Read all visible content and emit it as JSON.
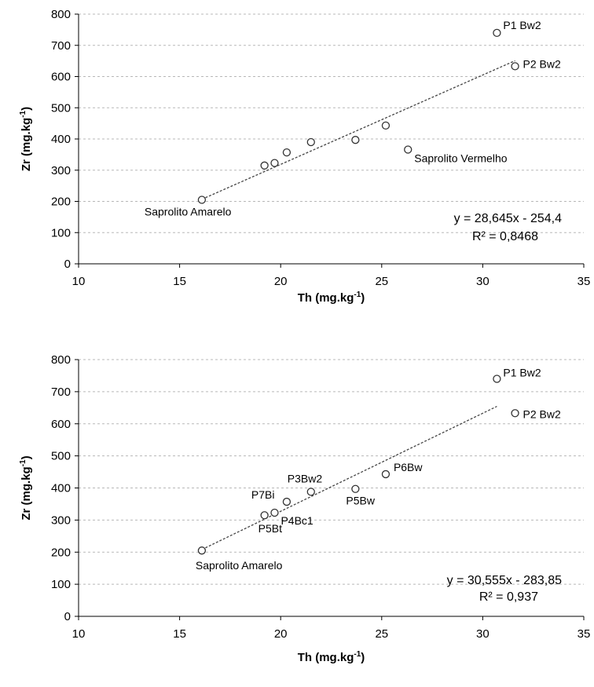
{
  "chart_data": [
    {
      "type": "scatter",
      "xlabel": "Th (mg.kg",
      "xlabel_sup": "-1",
      "xlabel_end": ")",
      "ylabel": "Zr (mg.kg",
      "ylabel_sup": "-1",
      "ylabel_end": ")",
      "xlim": [
        10,
        35
      ],
      "ylim": [
        0,
        800
      ],
      "xticks": [
        10,
        15,
        20,
        25,
        30,
        35
      ],
      "yticks": [
        0,
        100,
        200,
        300,
        400,
        500,
        600,
        700,
        800
      ],
      "grid": true,
      "points": [
        {
          "x": 16.1,
          "y": 205,
          "label": "Saprolito Amarelo"
        },
        {
          "x": 19.2,
          "y": 315,
          "label": ""
        },
        {
          "x": 19.7,
          "y": 323,
          "label": ""
        },
        {
          "x": 20.3,
          "y": 357,
          "label": ""
        },
        {
          "x": 21.5,
          "y": 390,
          "label": ""
        },
        {
          "x": 23.7,
          "y": 397,
          "label": ""
        },
        {
          "x": 25.2,
          "y": 443,
          "label": ""
        },
        {
          "x": 26.3,
          "y": 366,
          "label": "Saprolito Vermelho"
        },
        {
          "x": 30.7,
          "y": 740,
          "label": "P1 Bw2"
        },
        {
          "x": 31.6,
          "y": 633,
          "label": "P2 Bw2"
        }
      ],
      "trendline": {
        "x": [
          16.1,
          31.6
        ],
        "y": [
          206.8,
          650.8
        ]
      },
      "equation": "y = 28,645x - 254,4",
      "r_squared": "R² = 0,8468"
    },
    {
      "type": "scatter",
      "xlabel": "Th (mg.kg",
      "xlabel_sup": "-1",
      "xlabel_end": ")",
      "ylabel": "Zr (mg.kg",
      "ylabel_sup": "-1",
      "ylabel_end": ")",
      "xlim": [
        10,
        35
      ],
      "ylim": [
        0,
        800
      ],
      "xticks": [
        10,
        15,
        20,
        25,
        30,
        35
      ],
      "yticks": [
        0,
        100,
        200,
        300,
        400,
        500,
        600,
        700,
        800
      ],
      "grid": true,
      "points": [
        {
          "x": 16.1,
          "y": 205,
          "label": "Saprolito Amarelo"
        },
        {
          "x": 19.2,
          "y": 315,
          "label": "P5Bt"
        },
        {
          "x": 19.7,
          "y": 323,
          "label": "P4Bc1"
        },
        {
          "x": 20.3,
          "y": 357,
          "label": "P7Bi"
        },
        {
          "x": 21.5,
          "y": 388,
          "label": "P3Bw2"
        },
        {
          "x": 23.7,
          "y": 397,
          "label": "P5Bw"
        },
        {
          "x": 25.2,
          "y": 443,
          "label": "P6Bw"
        },
        {
          "x": 30.7,
          "y": 740,
          "label": "P1 Bw2"
        },
        {
          "x": 31.6,
          "y": 633,
          "label": "P2 Bw2"
        }
      ],
      "trendline": {
        "x": [
          16.1,
          30.7
        ],
        "y": [
          208.1,
          654.2
        ]
      },
      "equation": "y = 30,555x - 283,85",
      "r_squared": "R² = 0,937"
    }
  ]
}
